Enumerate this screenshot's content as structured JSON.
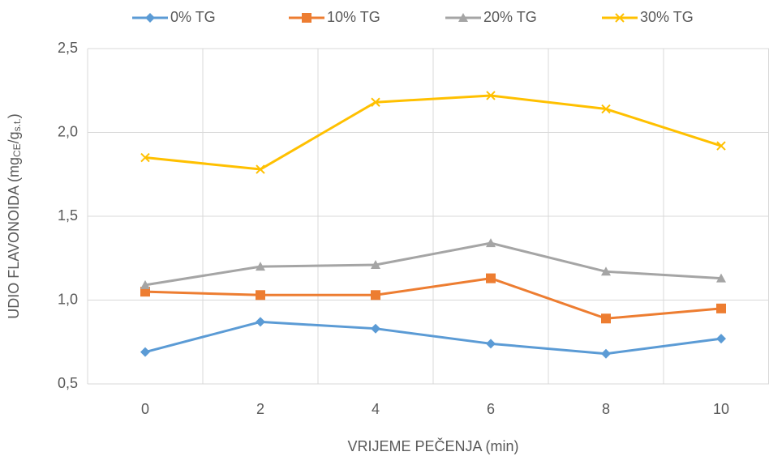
{
  "chart_data": {
    "type": "line",
    "x_label": "VRIJEME PEČENJA (min)",
    "y_label": [
      "UDIO FLAVONOIDA (mg",
      "CE",
      "/g",
      "s.t.",
      ")"
    ],
    "categories": [
      "0",
      "2",
      "4",
      "6",
      "8",
      "10"
    ],
    "series": [
      {
        "name": "0% TG",
        "color": "#5b9bd5",
        "marker": "diamond",
        "values": [
          0.69,
          0.87,
          0.83,
          0.74,
          0.68,
          0.77
        ]
      },
      {
        "name": "10% TG",
        "color": "#ed7d31",
        "marker": "square",
        "values": [
          1.05,
          1.03,
          1.03,
          1.13,
          0.89,
          0.95
        ]
      },
      {
        "name": "20% TG",
        "color": "#a5a5a5",
        "marker": "triangle",
        "values": [
          1.09,
          1.2,
          1.21,
          1.34,
          1.17,
          1.13
        ]
      },
      {
        "name": "30% TG",
        "color": "#ffc000",
        "marker": "x",
        "values": [
          1.85,
          1.78,
          2.18,
          2.22,
          2.14,
          1.92
        ]
      }
    ],
    "ylim": [
      0.5,
      2.5
    ],
    "yticks": [
      {
        "value": 0.5,
        "label": "0,5"
      },
      {
        "value": 1.0,
        "label": "1,0"
      },
      {
        "value": 1.5,
        "label": "1,5"
      },
      {
        "value": 2.0,
        "label": "2,0"
      },
      {
        "value": 2.5,
        "label": "2,5"
      }
    ],
    "grid": true,
    "legend": "top"
  }
}
